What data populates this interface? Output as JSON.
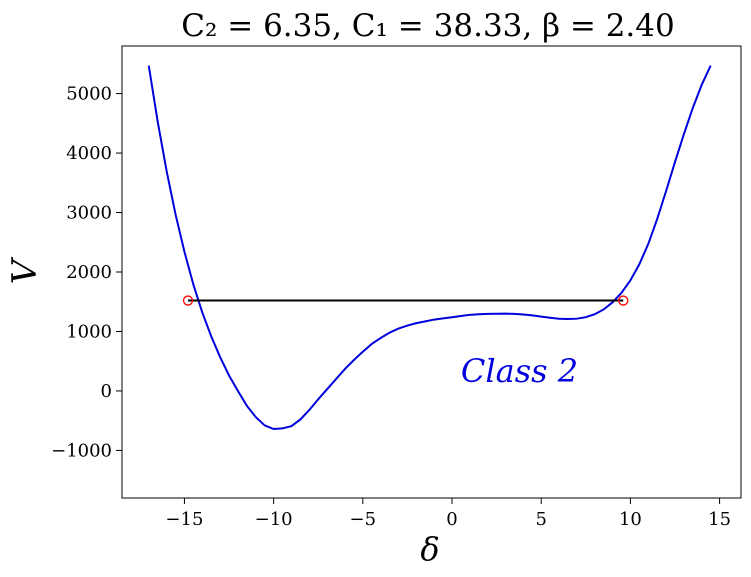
{
  "chart_data": {
    "type": "line",
    "title": "C₂ = 6.35,  C₁ = 38.33,  β = 2.40",
    "xlabel": "δ",
    "ylabel": "V",
    "xlim": [
      -18.5,
      16.2
    ],
    "ylim": [
      -1800,
      5800
    ],
    "xticks": [
      -15,
      -10,
      -5,
      0,
      5,
      10,
      15
    ],
    "xtick_labels": [
      "−15",
      "−10",
      "−5",
      "0",
      "5",
      "10",
      "15"
    ],
    "yticks": [
      -1000,
      0,
      1000,
      2000,
      3000,
      4000,
      5000
    ],
    "ytick_labels": [
      "−1000",
      "0",
      "1000",
      "2000",
      "3000",
      "4000",
      "5000"
    ],
    "grid": false,
    "series": [
      {
        "color": "#0000dd",
        "x": [
          -17.0,
          -16.5,
          -16.0,
          -15.5,
          -15.0,
          -14.5,
          -14.0,
          -13.5,
          -13.0,
          -12.5,
          -12.0,
          -11.5,
          -11.0,
          -10.5,
          -10.0,
          -9.5,
          -9.0,
          -8.5,
          -8.0,
          -7.5,
          -7.0,
          -6.5,
          -6.0,
          -5.5,
          -5.0,
          -4.5,
          -4.0,
          -3.5,
          -3.0,
          -2.5,
          -2.0,
          -1.5,
          -1.0,
          -0.5,
          0.0,
          0.5,
          1.0,
          1.5,
          2.0,
          2.5,
          3.0,
          3.5,
          4.0,
          4.5,
          5.0,
          5.5,
          6.0,
          6.5,
          7.0,
          7.5,
          8.0,
          8.5,
          9.0,
          9.5,
          10.0,
          10.5,
          11.0,
          11.5,
          12.0,
          12.5,
          13.0,
          13.5,
          14.0,
          14.5
        ],
        "y": [
          5470,
          4530,
          3700,
          2970,
          2340,
          1790,
          1320,
          920,
          570,
          260,
          0,
          -250,
          -440,
          -580,
          -640,
          -630,
          -590,
          -480,
          -320,
          -140,
          30,
          200,
          370,
          520,
          660,
          790,
          890,
          980,
          1050,
          1100,
          1140,
          1170,
          1200,
          1220,
          1240,
          1260,
          1280,
          1290,
          1295,
          1298,
          1300,
          1295,
          1285,
          1270,
          1250,
          1230,
          1215,
          1210,
          1215,
          1240,
          1290,
          1370,
          1490,
          1650,
          1860,
          2130,
          2470,
          2890,
          3360,
          3850,
          4320,
          4760,
          5150,
          5470
        ]
      }
    ],
    "hline": {
      "color": "#000000",
      "y": 1520,
      "x1": -14.8,
      "x2": 9.6
    },
    "markers": [
      {
        "x": -14.8,
        "y": 1520,
        "color": "#ff0000"
      },
      {
        "x": 9.6,
        "y": 1520,
        "color": "#ff0000"
      }
    ],
    "annotation": {
      "text": "Class 2",
      "x": 0.5,
      "y": 150,
      "color": "#0000dd"
    }
  }
}
